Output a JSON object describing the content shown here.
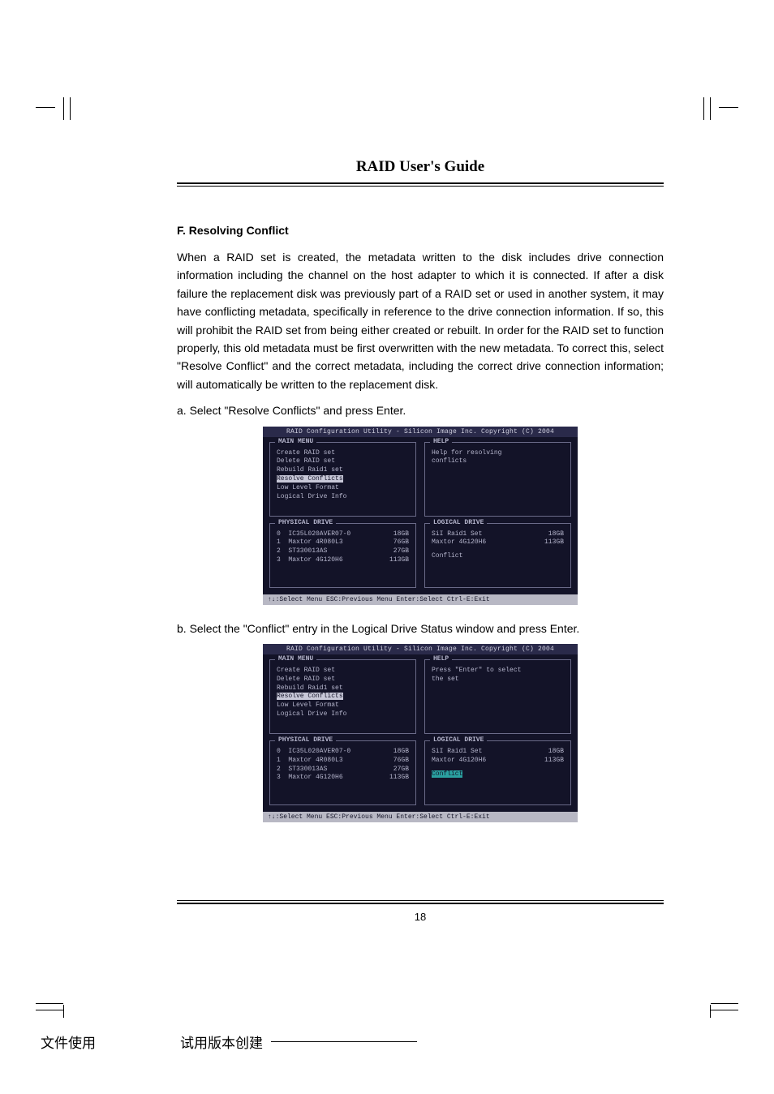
{
  "header": {
    "title": "RAID User's Guide"
  },
  "section": {
    "heading": "F. Resolving Conflict"
  },
  "body": {
    "para": "When a RAID set is created, the metadata written to the disk includes drive connection information including the channel on the host adapter to which it is connected. If after a disk failure the replacement disk was previously part of a RAID set or used in another system, it may have conflicting metadata, specifically in reference to the drive connection information. If so, this will prohibit the RAID set from being either created or rebuilt. In order for the RAID set to function properly, this old metadata must be first overwritten with the new metadata. To correct this, select \"Resolve Conflict\" and the correct metadata, including the correct drive connection information; will automatically be written to the replacement disk.",
    "step_a": "a.  Select \"Resolve Conflicts\" and press Enter.",
    "step_b": "b.  Select the \"Conflict\" entry in the Logical Drive Status window and press Enter."
  },
  "bios": {
    "titlebar": "RAID Configuration Utility - Silicon Image Inc. Copyright (C) 2004",
    "footer": "↑↓:Select Menu  ESC:Previous Menu  Enter:Select  Ctrl-E:Exit",
    "main_menu_label": "MAIN MENU",
    "help_label": "HELP",
    "phys_label": "PHYSICAL DRIVE",
    "logical_label": "LOGICAL DRIVE",
    "menu_items": [
      "Create RAID set",
      "Delete RAID set",
      "Rebuild Raid1 set",
      "Resolve Conflicts",
      "Low Level Format",
      "Logical Drive Info"
    ],
    "help1": [
      "Help for resolving",
      "conflicts"
    ],
    "help2": [
      "Press \"Enter\" to select",
      "the set"
    ],
    "phys": [
      {
        "idx": "0",
        "name": "IC35L020AVER07-0",
        "size": "18GB"
      },
      {
        "idx": "1",
        "name": "Maxtor 4R080L3",
        "size": "76GB"
      },
      {
        "idx": "2",
        "name": "ST330013AS",
        "size": "27GB"
      },
      {
        "idx": "3",
        "name": "Maxtor 4G120H6",
        "size": "113GB"
      }
    ],
    "logical": [
      {
        "name": "SiI Raid1 Set",
        "size": "18GB"
      },
      {
        "name": "Maxtor 4G120H6",
        "size": "113GB"
      }
    ],
    "conflict_label": "Conflict"
  },
  "footer": {
    "page_number": "18",
    "left_label": "文件使用",
    "right_label": "试用版本创建"
  },
  "colors": {
    "bios_title_bg": "#2a2a4a",
    "bios_body_bg": "#131328",
    "bios_text": "#b5b5cc",
    "bios_border": "#6a6a88",
    "bios_highlight_bg": "#c8c8d8",
    "bios_highlight_text": "#131328",
    "bios_cyan_bg": "#2aa0a0",
    "bios_footer_bg": "#b8b8c4"
  }
}
